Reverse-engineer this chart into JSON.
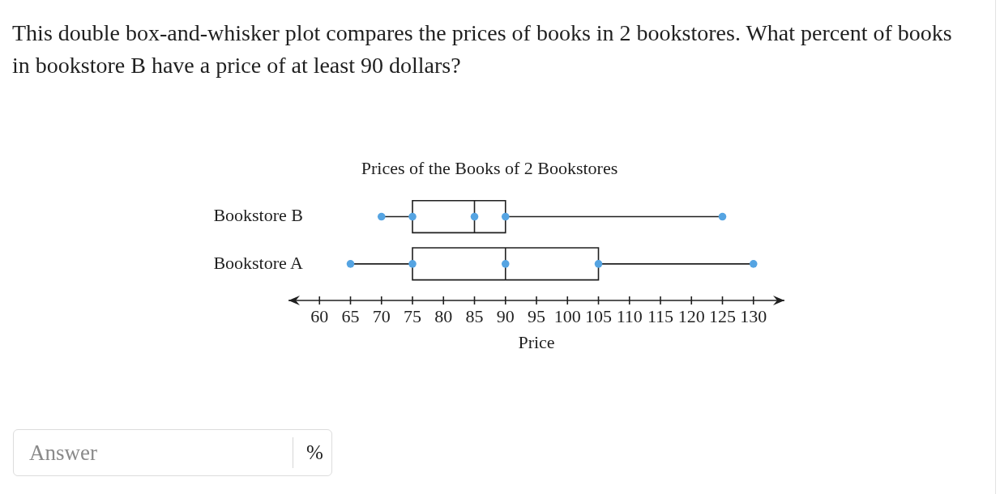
{
  "chart_data": {
    "type": "box",
    "title": "Prices of the Books of 2 Bookstores",
    "xlabel": "Price",
    "orientation": "horizontal",
    "categories": [
      "Bookstore B",
      "Bookstore A"
    ],
    "series": [
      {
        "color": "#1f1f1f",
        "boxes": [
          {
            "low": 70,
            "q1": 75,
            "median": 85,
            "q3": 90,
            "high": 125
          },
          {
            "low": 65,
            "q1": 75,
            "median": 90,
            "q3": 105,
            "high": 130
          }
        ]
      },
      {
        "type": "scatter",
        "color": "#55a4e2",
        "x": [
          "Bookstore B",
          "Bookstore B",
          "Bookstore B",
          "Bookstore B",
          "Bookstore B",
          "Bookstore A",
          "Bookstore A",
          "Bookstore A",
          "Bookstore A",
          "Bookstore A"
        ],
        "values": [
          70,
          75,
          85,
          90,
          125,
          65,
          75,
          90,
          105,
          130
        ]
      }
    ],
    "marker": "circle",
    "xlim": [
      55,
      135
    ],
    "xticks": [
      60,
      65,
      70,
      75,
      80,
      85,
      90,
      95,
      100,
      105,
      110,
      115,
      120,
      125,
      130
    ],
    "annotations": [
      "This double box-and-whisker plot compares the prices of books in 2 bookstores. What percent of books in bookstore B have a price of at least 90 dollars?",
      "Answer",
      "%"
    ]
  }
}
